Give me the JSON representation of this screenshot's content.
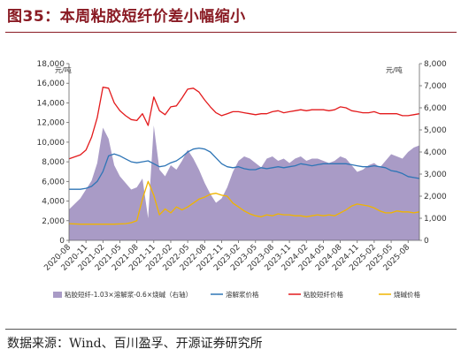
{
  "title": "图35：本周粘胶短纤价差小幅缩小",
  "source": "数据来源：Wind、百川盈孚、开源证券研究所",
  "colors": {
    "title": "#8a1b24",
    "spread_fill": "#a99bc6",
    "pulp": "#2e75b6",
    "viscose": "#e31a1c",
    "caustic": "#f0b400"
  },
  "chart_data": {
    "type": "line",
    "left_unit": "元/吨",
    "right_unit": "元/吨",
    "ylim_left": [
      0,
      18000
    ],
    "yticks_left": [
      "0",
      "2,000",
      "4,000",
      "6,000",
      "8,000",
      "10,000",
      "12,000",
      "14,000",
      "16,000",
      "18,000"
    ],
    "ylim_right": [
      0,
      8000
    ],
    "yticks_right": [
      "0",
      "1,000",
      "2,000",
      "3,000",
      "4,000",
      "5,000",
      "6,000",
      "7,000",
      "8,000"
    ],
    "x_range": [
      "2020-08",
      "2025-10"
    ],
    "xticks": [
      "2020-08",
      "2020-11",
      "2021-02",
      "2021-05",
      "2021-08",
      "2021-11",
      "2022-02",
      "2022-05",
      "2022-08",
      "2022-11",
      "2023-02",
      "2023-05",
      "2023-08",
      "2023-11",
      "2024-02",
      "2024-05",
      "2024-08",
      "2024-11",
      "2025-02",
      "2025-05",
      "2025-08"
    ],
    "grid": false,
    "legend_placement": "bottom",
    "series": [
      {
        "name": "粘胶短纤-1.03×溶解浆-0.6×烧碱（右轴）",
        "type": "area",
        "axis": "right",
        "points": [
          [
            "2020-08",
            1400
          ],
          [
            "2020-10",
            1900
          ],
          [
            "2020-12",
            2700
          ],
          [
            "2021-01",
            3500
          ],
          [
            "2021-02",
            5100
          ],
          [
            "2021-03",
            4600
          ],
          [
            "2021-04",
            3400
          ],
          [
            "2021-05",
            2900
          ],
          [
            "2021-06",
            2600
          ],
          [
            "2021-07",
            2300
          ],
          [
            "2021-08",
            2400
          ],
          [
            "2021-09",
            2800
          ],
          [
            "2021-10",
            1000
          ],
          [
            "2021-11",
            5200
          ],
          [
            "2021-12",
            3200
          ],
          [
            "2022-01",
            2900
          ],
          [
            "2022-02",
            3400
          ],
          [
            "2022-03",
            3200
          ],
          [
            "2022-04",
            3600
          ],
          [
            "2022-05",
            4100
          ],
          [
            "2022-06",
            3700
          ],
          [
            "2022-07",
            3200
          ],
          [
            "2022-08",
            2600
          ],
          [
            "2022-09",
            2100
          ],
          [
            "2022-10",
            1700
          ],
          [
            "2022-11",
            1900
          ],
          [
            "2022-12",
            2400
          ],
          [
            "2023-01",
            3100
          ],
          [
            "2023-02",
            3600
          ],
          [
            "2023-03",
            3800
          ],
          [
            "2023-04",
            3700
          ],
          [
            "2023-05",
            3500
          ],
          [
            "2023-06",
            3300
          ],
          [
            "2023-07",
            3700
          ],
          [
            "2023-08",
            3800
          ],
          [
            "2023-09",
            3600
          ],
          [
            "2023-10",
            3700
          ],
          [
            "2023-11",
            3500
          ],
          [
            "2023-12",
            3700
          ],
          [
            "2024-01",
            3800
          ],
          [
            "2024-02",
            3600
          ],
          [
            "2024-03",
            3700
          ],
          [
            "2024-04",
            3700
          ],
          [
            "2024-05",
            3600
          ],
          [
            "2024-06",
            3500
          ],
          [
            "2024-07",
            3600
          ],
          [
            "2024-08",
            3800
          ],
          [
            "2024-09",
            3700
          ],
          [
            "2024-10",
            3400
          ],
          [
            "2024-11",
            3100
          ],
          [
            "2024-12",
            3200
          ],
          [
            "2025-01",
            3400
          ],
          [
            "2025-02",
            3500
          ],
          [
            "2025-03",
            3300
          ],
          [
            "2025-04",
            3600
          ],
          [
            "2025-05",
            3900
          ],
          [
            "2025-06",
            3800
          ],
          [
            "2025-07",
            3700
          ],
          [
            "2025-08",
            4000
          ],
          [
            "2025-09",
            4200
          ],
          [
            "2025-10",
            4300
          ]
        ]
      },
      {
        "name": "溶解浆价格",
        "axis": "left",
        "points": [
          [
            "2020-08",
            5200
          ],
          [
            "2020-10",
            5200
          ],
          [
            "2020-11",
            5300
          ],
          [
            "2020-12",
            5500
          ],
          [
            "2021-01",
            6000
          ],
          [
            "2021-02",
            7000
          ],
          [
            "2021-03",
            8600
          ],
          [
            "2021-04",
            8800
          ],
          [
            "2021-05",
            8600
          ],
          [
            "2021-06",
            8300
          ],
          [
            "2021-07",
            8000
          ],
          [
            "2021-08",
            7900
          ],
          [
            "2021-09",
            8000
          ],
          [
            "2021-10",
            8100
          ],
          [
            "2021-11",
            7800
          ],
          [
            "2021-12",
            7500
          ],
          [
            "2022-01",
            7600
          ],
          [
            "2022-02",
            7900
          ],
          [
            "2022-03",
            8100
          ],
          [
            "2022-04",
            8500
          ],
          [
            "2022-05",
            9000
          ],
          [
            "2022-06",
            9300
          ],
          [
            "2022-07",
            9400
          ],
          [
            "2022-08",
            9300
          ],
          [
            "2022-09",
            9000
          ],
          [
            "2022-10",
            8400
          ],
          [
            "2022-11",
            7800
          ],
          [
            "2022-12",
            7500
          ],
          [
            "2023-01",
            7400
          ],
          [
            "2023-02",
            7500
          ],
          [
            "2023-03",
            7300
          ],
          [
            "2023-04",
            7200
          ],
          [
            "2023-05",
            7200
          ],
          [
            "2023-06",
            7400
          ],
          [
            "2023-07",
            7300
          ],
          [
            "2023-08",
            7400
          ],
          [
            "2023-09",
            7500
          ],
          [
            "2023-10",
            7400
          ],
          [
            "2023-11",
            7500
          ],
          [
            "2023-12",
            7600
          ],
          [
            "2024-01",
            7800
          ],
          [
            "2024-02",
            7700
          ],
          [
            "2024-03",
            7600
          ],
          [
            "2024-04",
            7700
          ],
          [
            "2024-05",
            7800
          ],
          [
            "2024-06",
            7800
          ],
          [
            "2024-07",
            7800
          ],
          [
            "2024-08",
            7800
          ],
          [
            "2024-09",
            7800
          ],
          [
            "2024-10",
            7700
          ],
          [
            "2024-11",
            7600
          ],
          [
            "2024-12",
            7500
          ],
          [
            "2025-01",
            7500
          ],
          [
            "2025-02",
            7600
          ],
          [
            "2025-03",
            7500
          ],
          [
            "2025-04",
            7400
          ],
          [
            "2025-05",
            7100
          ],
          [
            "2025-06",
            7000
          ],
          [
            "2025-07",
            6800
          ],
          [
            "2025-08",
            6500
          ],
          [
            "2025-09",
            6400
          ],
          [
            "2025-10",
            6300
          ]
        ]
      },
      {
        "name": "粘胶短纤价格",
        "axis": "left",
        "points": [
          [
            "2020-08",
            8300
          ],
          [
            "2020-10",
            8700
          ],
          [
            "2020-11",
            9200
          ],
          [
            "2020-12",
            10500
          ],
          [
            "2021-01",
            12500
          ],
          [
            "2021-02",
            15600
          ],
          [
            "2021-03",
            15500
          ],
          [
            "2021-04",
            14000
          ],
          [
            "2021-05",
            13200
          ],
          [
            "2021-06",
            12700
          ],
          [
            "2021-07",
            12300
          ],
          [
            "2021-08",
            12200
          ],
          [
            "2021-09",
            12900
          ],
          [
            "2021-10",
            11700
          ],
          [
            "2021-11",
            14600
          ],
          [
            "2021-12",
            13200
          ],
          [
            "2022-01",
            12800
          ],
          [
            "2022-02",
            13600
          ],
          [
            "2022-03",
            13700
          ],
          [
            "2022-04",
            14500
          ],
          [
            "2022-05",
            15400
          ],
          [
            "2022-06",
            15500
          ],
          [
            "2022-07",
            15100
          ],
          [
            "2022-08",
            14300
          ],
          [
            "2022-09",
            13600
          ],
          [
            "2022-10",
            13000
          ],
          [
            "2022-11",
            12700
          ],
          [
            "2022-12",
            12900
          ],
          [
            "2023-01",
            13100
          ],
          [
            "2023-02",
            13100
          ],
          [
            "2023-03",
            13000
          ],
          [
            "2023-04",
            12900
          ],
          [
            "2023-05",
            12800
          ],
          [
            "2023-06",
            12900
          ],
          [
            "2023-07",
            12900
          ],
          [
            "2023-08",
            13100
          ],
          [
            "2023-09",
            13200
          ],
          [
            "2023-10",
            13000
          ],
          [
            "2023-11",
            13100
          ],
          [
            "2023-12",
            13200
          ],
          [
            "2024-01",
            13300
          ],
          [
            "2024-02",
            13200
          ],
          [
            "2024-03",
            13300
          ],
          [
            "2024-04",
            13300
          ],
          [
            "2024-05",
            13300
          ],
          [
            "2024-06",
            13200
          ],
          [
            "2024-07",
            13300
          ],
          [
            "2024-08",
            13600
          ],
          [
            "2024-09",
            13500
          ],
          [
            "2024-10",
            13200
          ],
          [
            "2024-11",
            13100
          ],
          [
            "2024-12",
            13000
          ],
          [
            "2025-01",
            13000
          ],
          [
            "2025-02",
            13100
          ],
          [
            "2025-03",
            12900
          ],
          [
            "2025-04",
            12900
          ],
          [
            "2025-05",
            12900
          ],
          [
            "2025-06",
            12900
          ],
          [
            "2025-07",
            12700
          ],
          [
            "2025-08",
            12700
          ],
          [
            "2025-09",
            12800
          ],
          [
            "2025-10",
            12900
          ]
        ]
      },
      {
        "name": "烧碱价格",
        "axis": "left",
        "points": [
          [
            "2020-08",
            1700
          ],
          [
            "2020-10",
            1650
          ],
          [
            "2020-12",
            1650
          ],
          [
            "2021-02",
            1650
          ],
          [
            "2021-04",
            1650
          ],
          [
            "2021-06",
            1700
          ],
          [
            "2021-07",
            1800
          ],
          [
            "2021-08",
            2000
          ],
          [
            "2021-09",
            4200
          ],
          [
            "2021-10",
            6000
          ],
          [
            "2021-11",
            4600
          ],
          [
            "2021-12",
            2600
          ],
          [
            "2022-01",
            3200
          ],
          [
            "2022-02",
            2800
          ],
          [
            "2022-03",
            3400
          ],
          [
            "2022-04",
            3100
          ],
          [
            "2022-05",
            3400
          ],
          [
            "2022-06",
            3800
          ],
          [
            "2022-07",
            4200
          ],
          [
            "2022-08",
            4400
          ],
          [
            "2022-09",
            4700
          ],
          [
            "2022-10",
            4800
          ],
          [
            "2022-11",
            4600
          ],
          [
            "2022-12",
            4500
          ],
          [
            "2023-01",
            3800
          ],
          [
            "2023-02",
            3400
          ],
          [
            "2023-03",
            3000
          ],
          [
            "2023-04",
            2700
          ],
          [
            "2023-05",
            2500
          ],
          [
            "2023-06",
            2400
          ],
          [
            "2023-07",
            2600
          ],
          [
            "2023-08",
            2500
          ],
          [
            "2023-09",
            2700
          ],
          [
            "2023-10",
            2600
          ],
          [
            "2023-11",
            2600
          ],
          [
            "2023-12",
            2500
          ],
          [
            "2024-01",
            2500
          ],
          [
            "2024-02",
            2400
          ],
          [
            "2024-03",
            2500
          ],
          [
            "2024-04",
            2600
          ],
          [
            "2024-05",
            2500
          ],
          [
            "2024-06",
            2600
          ],
          [
            "2024-07",
            2500
          ],
          [
            "2024-08",
            2800
          ],
          [
            "2024-09",
            3100
          ],
          [
            "2024-10",
            3500
          ],
          [
            "2024-11",
            3700
          ],
          [
            "2024-12",
            3600
          ],
          [
            "2025-01",
            3500
          ],
          [
            "2025-02",
            3300
          ],
          [
            "2025-03",
            3000
          ],
          [
            "2025-04",
            2800
          ],
          [
            "2025-05",
            2800
          ],
          [
            "2025-06",
            3000
          ],
          [
            "2025-07",
            2900
          ],
          [
            "2025-08",
            2900
          ],
          [
            "2025-09",
            2800
          ],
          [
            "2025-10",
            2900
          ]
        ]
      }
    ]
  }
}
